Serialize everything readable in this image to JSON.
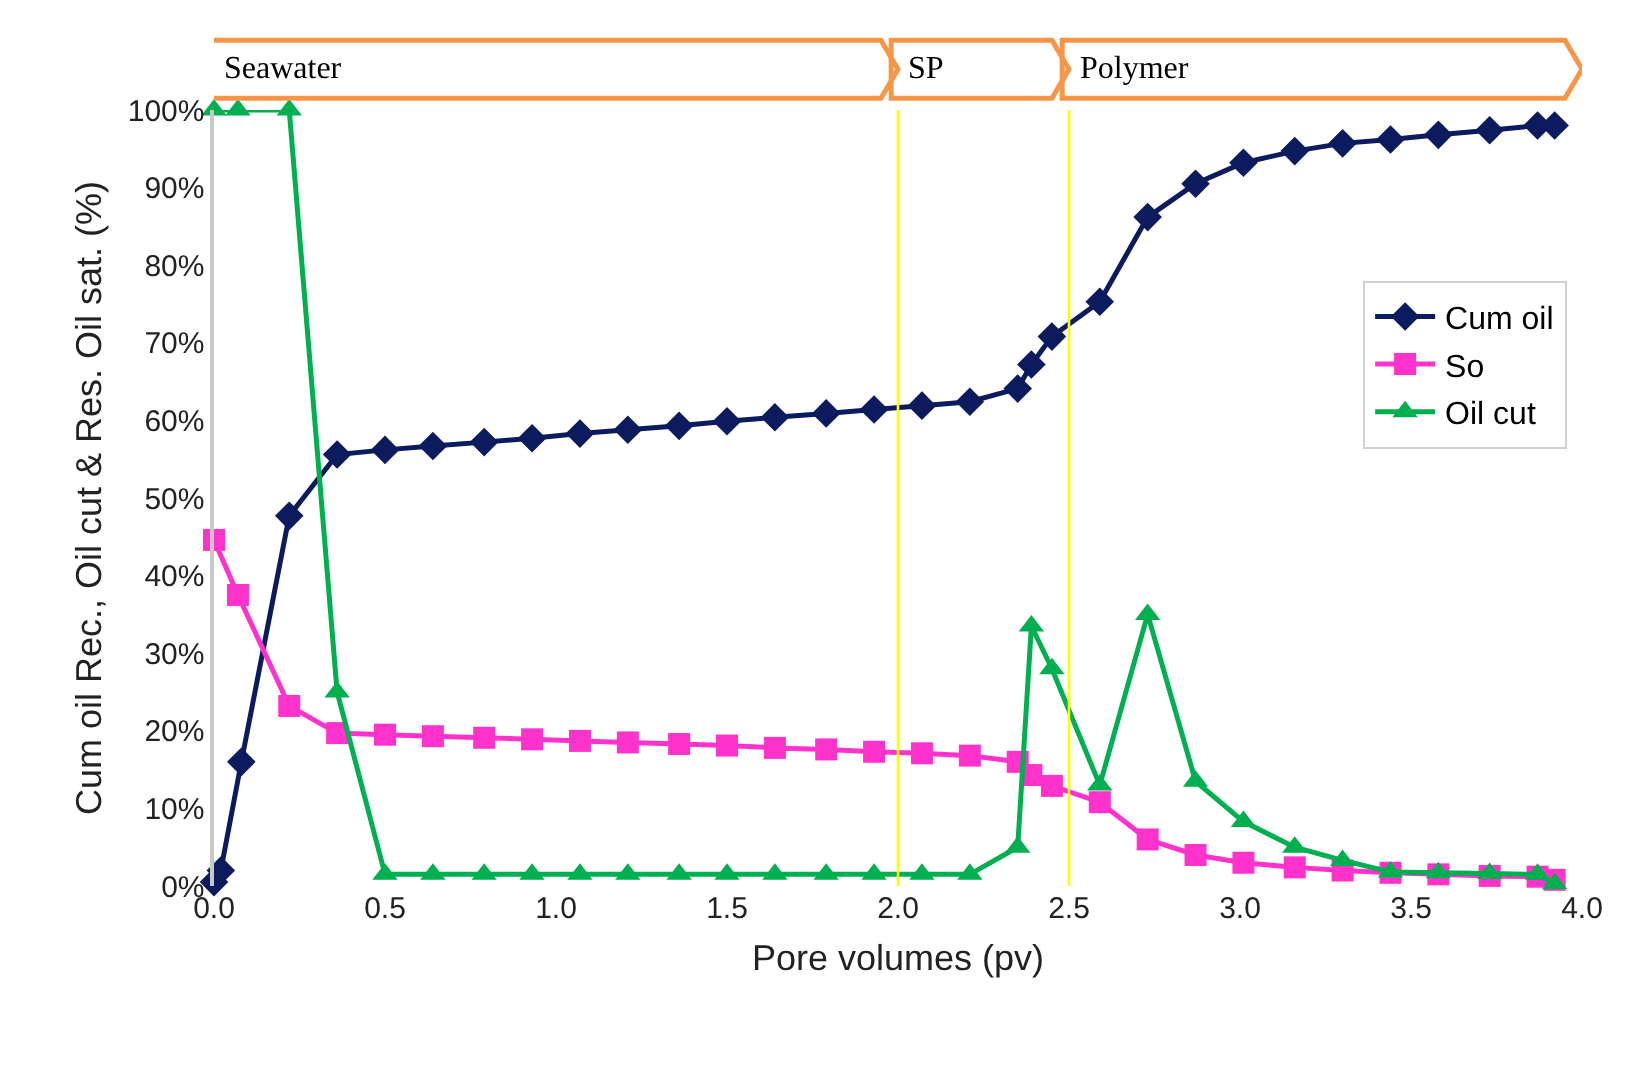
{
  "chart_data": {
    "type": "line",
    "xlabel": "Pore volumes (pv)",
    "ylabel": "Cum oil Rec., Oil cut & Res. Oil sat. (%)",
    "x": [
      0.0,
      0.07,
      0.22,
      0.36,
      0.5,
      0.64,
      0.79,
      0.93,
      1.07,
      1.21,
      1.36,
      1.5,
      1.64,
      1.79,
      1.93,
      2.07,
      2.21,
      2.35,
      2.39,
      2.45,
      2.59,
      2.73,
      2.87,
      3.01,
      3.16,
      3.3,
      3.44,
      3.58,
      3.73,
      3.87,
      3.92
    ],
    "series": [
      {
        "name": "Cum oil",
        "color": "#0c1a5e",
        "marker": "diamond",
        "x": [
          0.0,
          0.02,
          0.08,
          0.22,
          0.36,
          0.5,
          0.64,
          0.79,
          0.93,
          1.07,
          1.21,
          1.36,
          1.5,
          1.64,
          1.79,
          1.93,
          2.07,
          2.21,
          2.35,
          2.39,
          2.45,
          2.59,
          2.73,
          2.87,
          3.01,
          3.16,
          3.3,
          3.44,
          3.58,
          3.73,
          3.87,
          3.92
        ],
        "values": [
          0.5,
          2,
          16,
          47.7,
          55.6,
          56.2,
          56.7,
          57.2,
          57.7,
          58.3,
          58.8,
          59.3,
          59.9,
          60.4,
          60.9,
          61.4,
          61.9,
          62.4,
          64.1,
          67.2,
          70.8,
          75.3,
          86.2,
          90.5,
          93.2,
          94.7,
          95.7,
          96.2,
          96.8,
          97.4,
          98.0,
          98.0
        ]
      },
      {
        "name": "So",
        "color": "#ff33cc",
        "marker": "square",
        "values": [
          44.6,
          37.5,
          23.2,
          19.7,
          19.5,
          19.3,
          19.1,
          18.9,
          18.7,
          18.5,
          18.3,
          18.1,
          17.8,
          17.6,
          17.3,
          17.1,
          16.8,
          16.0,
          14.3,
          12.9,
          10.8,
          6.0,
          4.0,
          3.0,
          2.4,
          2.0,
          1.7,
          1.5,
          1.3,
          1.2,
          0.8
        ]
      },
      {
        "name": "Oil cut",
        "color": "#00b050",
        "marker": "triangle",
        "values": [
          100,
          100,
          100,
          25,
          1.5,
          1.5,
          1.5,
          1.5,
          1.5,
          1.5,
          1.5,
          1.5,
          1.5,
          1.5,
          1.5,
          1.5,
          1.5,
          5.0,
          33.5,
          28,
          13,
          35,
          13.5,
          8.3,
          5.0,
          3.3,
          1.8,
          1.7,
          1.6,
          1.5,
          0.3
        ]
      }
    ],
    "xlim": [
      0,
      4
    ],
    "xticks": [
      {
        "value": 0,
        "label": "0.0"
      },
      {
        "value": 0.5,
        "label": "0.5"
      },
      {
        "value": 1,
        "label": "1.0"
      },
      {
        "value": 1.5,
        "label": "1.5"
      },
      {
        "value": 2,
        "label": "2.0"
      },
      {
        "value": 2.5,
        "label": "2.5"
      },
      {
        "value": 3,
        "label": "3.0"
      },
      {
        "value": 3.5,
        "label": "3.5"
      },
      {
        "value": 4,
        "label": "4.0"
      }
    ],
    "ylim": [
      0,
      100
    ],
    "yticks": [
      {
        "value": 0,
        "label": "0%"
      },
      {
        "value": 10,
        "label": "10%"
      },
      {
        "value": 20,
        "label": "20%"
      },
      {
        "value": 30,
        "label": "30%"
      },
      {
        "value": 40,
        "label": "40%"
      },
      {
        "value": 50,
        "label": "50%"
      },
      {
        "value": 60,
        "label": "60%"
      },
      {
        "value": 70,
        "label": "70%"
      },
      {
        "value": 80,
        "label": "80%"
      },
      {
        "value": 90,
        "label": "90%"
      },
      {
        "value": 100,
        "label": "100%"
      }
    ],
    "ref_lines": [
      {
        "axis": "x",
        "value": 2.0,
        "color": "#ffff00"
      },
      {
        "axis": "x",
        "value": 2.5,
        "color": "#ffff00"
      }
    ],
    "annotations": [
      "Seawater",
      "SP",
      "Polymer"
    ],
    "legend": "right",
    "line_style": "solid"
  }
}
